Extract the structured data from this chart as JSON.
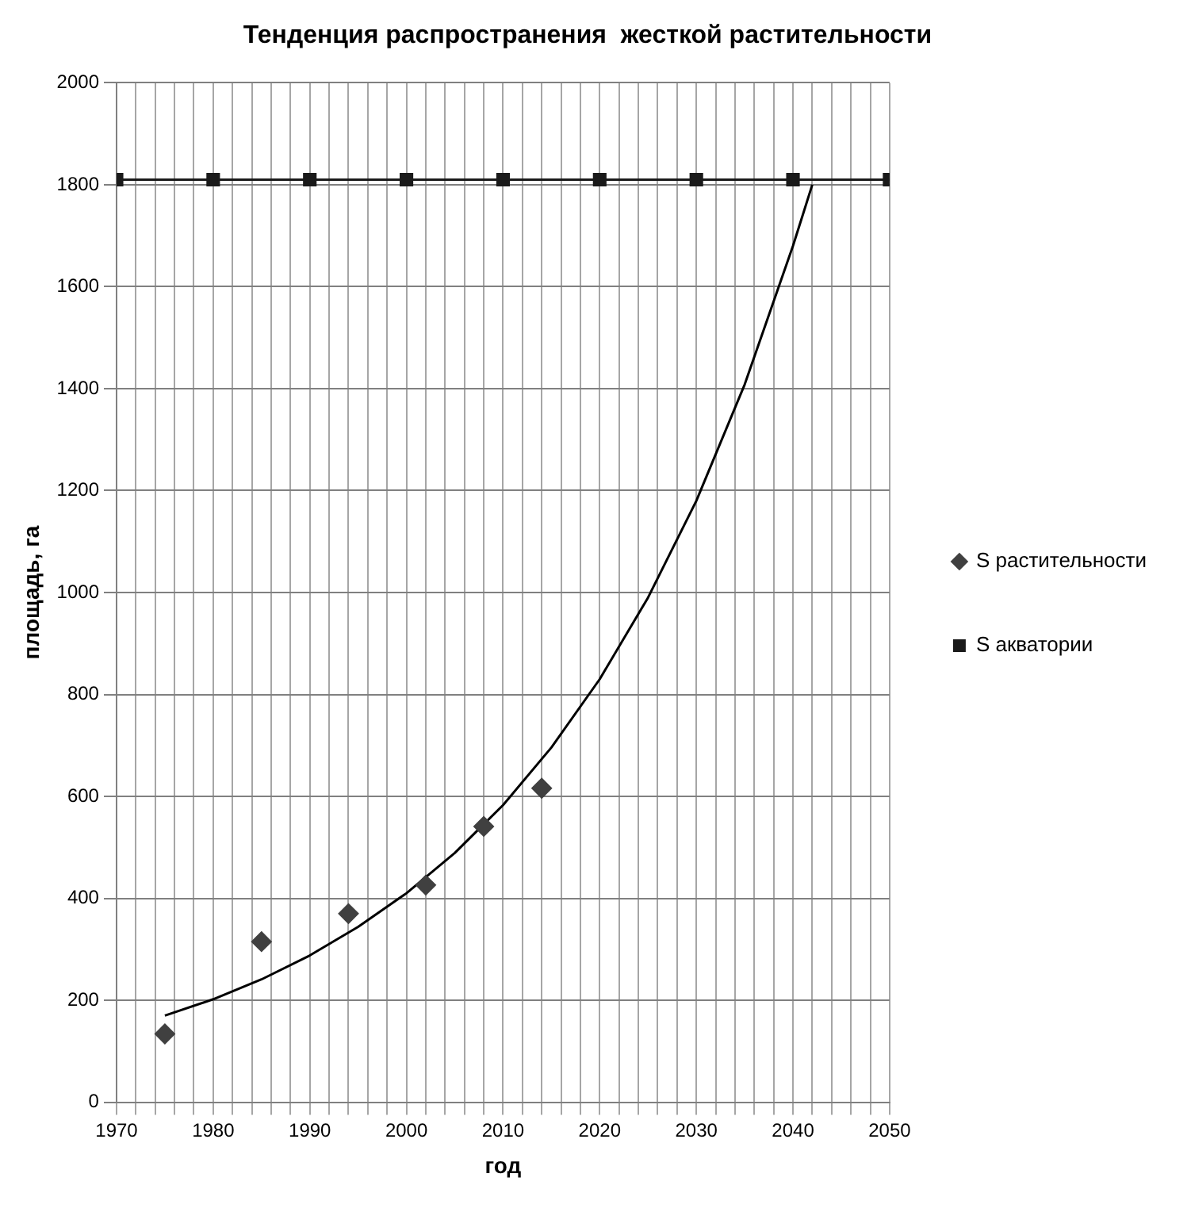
{
  "chart_data": {
    "type": "scatter",
    "title": "Тенденция распространения  жесткой растительности",
    "xlabel": "год",
    "ylabel": "площадь, га",
    "xlim": [
      1970,
      2050
    ],
    "ylim": [
      0,
      2000
    ],
    "xticks": [
      1970,
      {
        "value": 1972,
        "label": null
      },
      {
        "value": 1974,
        "label": null
      },
      {
        "value": 1976,
        "label": null
      },
      {
        "value": 1978,
        "label": null
      },
      1980,
      {
        "value": 1982,
        "label": null
      },
      {
        "value": 1984,
        "label": null
      },
      {
        "value": 1986,
        "label": null
      },
      {
        "value": 1988,
        "label": null
      },
      1990,
      {
        "value": 1992,
        "label": null
      },
      {
        "value": 1994,
        "label": null
      },
      {
        "value": 1996,
        "label": null
      },
      {
        "value": 1998,
        "label": null
      },
      2000,
      {
        "value": 2002,
        "label": null
      },
      {
        "value": 2004,
        "label": null
      },
      {
        "value": 2006,
        "label": null
      },
      {
        "value": 2008,
        "label": null
      },
      2010,
      {
        "value": 2012,
        "label": null
      },
      {
        "value": 2014,
        "label": null
      },
      {
        "value": 2016,
        "label": null
      },
      {
        "value": 2018,
        "label": null
      },
      2020,
      {
        "value": 2022,
        "label": null
      },
      {
        "value": 2024,
        "label": null
      },
      {
        "value": 2026,
        "label": null
      },
      {
        "value": 2028,
        "label": null
      },
      2030,
      {
        "value": 2032,
        "label": null
      },
      {
        "value": 2034,
        "label": null
      },
      {
        "value": 2036,
        "label": null
      },
      {
        "value": 2038,
        "label": null
      },
      2040,
      {
        "value": 2042,
        "label": null
      },
      {
        "value": 2044,
        "label": null
      },
      {
        "value": 2046,
        "label": null
      },
      {
        "value": 2048,
        "label": null
      },
      2050
    ],
    "yticks": [
      0,
      200,
      400,
      600,
      800,
      1000,
      1200,
      1400,
      1600,
      1800,
      2000
    ],
    "grid": true,
    "legend": "right",
    "series": [
      {
        "name": "S растительности",
        "type": "scatter",
        "marker": "diamond",
        "color": "#404040",
        "x": [
          1975,
          1985,
          1994,
          2002,
          2008,
          2014
        ],
        "values": [
          134,
          315,
          370,
          426,
          541,
          616
        ]
      },
      {
        "name": "S акватории",
        "type": "line",
        "marker": "square",
        "color": "#1a1a1a",
        "x": [
          1970,
          1980,
          1990,
          2000,
          2010,
          2020,
          2030,
          2040,
          2050
        ],
        "values": [
          1810,
          1810,
          1810,
          1810,
          1810,
          1810,
          1810,
          1810,
          1810
        ]
      },
      {
        "type": "line",
        "marker": "none",
        "color": "#000000",
        "x": [
          1975,
          1980,
          1985,
          1990,
          1995,
          2000,
          2005,
          2010,
          2015,
          2020,
          2025,
          2030,
          2035,
          2040,
          2042
        ],
        "values": [
          170,
          202,
          241,
          288,
          344,
          410,
          489,
          583,
          696,
          830,
          990,
          1180,
          1408,
          1680,
          1800
        ]
      }
    ]
  }
}
